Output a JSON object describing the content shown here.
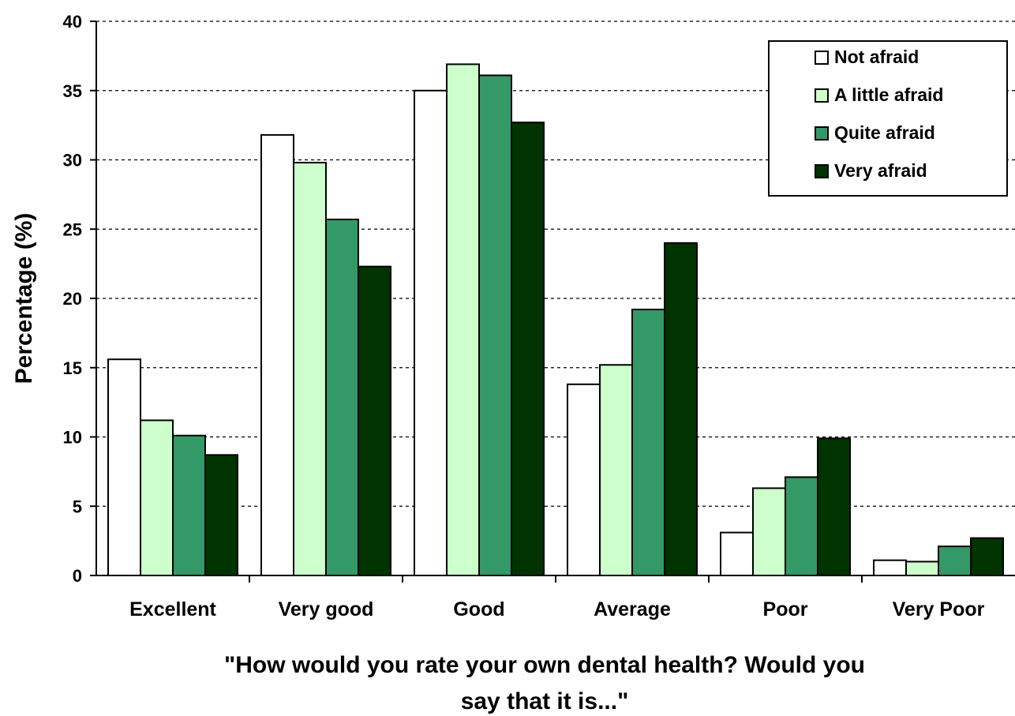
{
  "chart_data": {
    "type": "bar",
    "xlabel_lines": [
      "\"How would you rate your own dental health? Would you",
      "say that it is...\""
    ],
    "ylabel": "Percentage (%)",
    "ylim": [
      0,
      40
    ],
    "yticks": [
      0,
      5,
      10,
      15,
      20,
      25,
      30,
      35,
      40
    ],
    "grid": "horizontal dashed",
    "legend_position": "top-right",
    "categories": [
      "Excellent",
      "Very good",
      "Good",
      "Average",
      "Poor",
      "Very Poor"
    ],
    "series": [
      {
        "name": "Not afraid",
        "color": "#ffffff",
        "values": [
          15.6,
          31.8,
          35.0,
          13.8,
          3.1,
          1.1
        ]
      },
      {
        "name": "A little afraid",
        "color": "#ccffcc",
        "values": [
          11.2,
          29.8,
          36.9,
          15.2,
          6.3,
          1.0
        ]
      },
      {
        "name": "Quite afraid",
        "color": "#339966",
        "values": [
          10.1,
          25.7,
          36.1,
          19.2,
          7.1,
          2.1
        ]
      },
      {
        "name": "Very afraid",
        "color": "#003300",
        "values": [
          8.7,
          22.3,
          32.7,
          24.0,
          9.9,
          2.7
        ]
      }
    ]
  }
}
